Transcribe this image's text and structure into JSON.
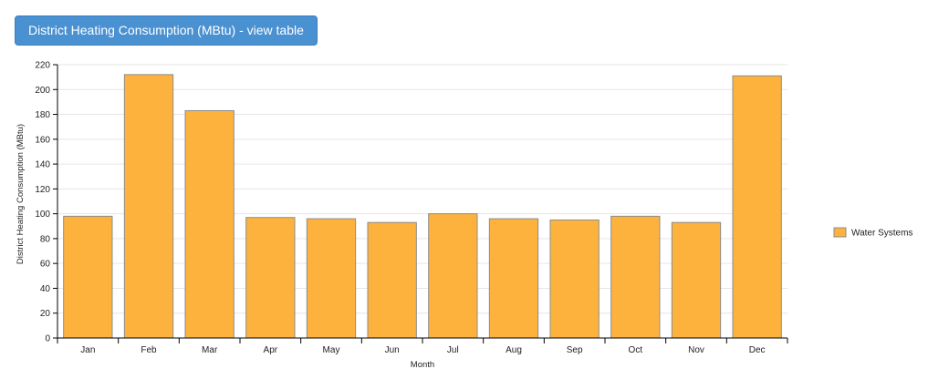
{
  "header": {
    "view_table_label": "District Heating Consumption (MBtu) - view table"
  },
  "chart_data": {
    "type": "bar",
    "categories": [
      "Jan",
      "Feb",
      "Mar",
      "Apr",
      "May",
      "Jun",
      "Jul",
      "Aug",
      "Sep",
      "Oct",
      "Nov",
      "Dec"
    ],
    "series": [
      {
        "name": "Water Systems",
        "color": "#fcb23d",
        "values": [
          98,
          212,
          183,
          97,
          96,
          93,
          100,
          96,
          95,
          98,
          93,
          211
        ]
      }
    ],
    "xlabel": "Month",
    "ylabel": "District Heating Consumption (MBtu)",
    "ylim": [
      0,
      220
    ],
    "yticks": [
      0,
      20,
      40,
      60,
      80,
      100,
      120,
      140,
      160,
      180,
      200,
      220
    ],
    "grid": true,
    "legend_position": "right"
  }
}
